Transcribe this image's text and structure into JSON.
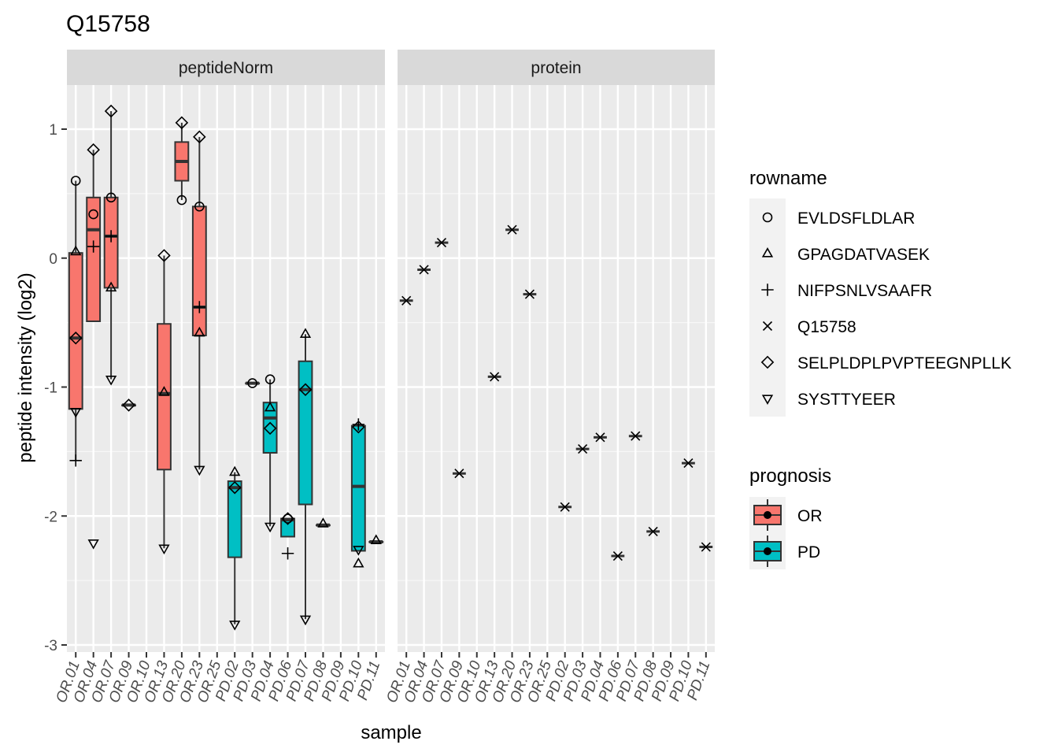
{
  "chart_data": {
    "type": "boxplot",
    "title": "Q15758",
    "xlabel": "sample",
    "ylabel": "peptide intensity (log2)",
    "ylim": [
      -3,
      1.3
    ],
    "yticks": [
      -3,
      -2,
      -1,
      0,
      1
    ],
    "grid": true,
    "samples": [
      "OR.01",
      "OR.04",
      "OR.07",
      "OR.09",
      "OR.10",
      "OR.13",
      "OR.20",
      "OR.23",
      "OR.25",
      "PD.02",
      "PD.03",
      "PD.04",
      "PD.06",
      "PD.07",
      "PD.08",
      "PD.09",
      "PD.10",
      "PD.11"
    ],
    "panels": [
      {
        "name": "peptideNorm",
        "boxes": [
          {
            "sample": "OR.01",
            "group": "OR",
            "q1": -1.17,
            "median": -0.62,
            "q3": 0.04,
            "whisker_low": -1.57,
            "whisker_high": 0.6
          },
          {
            "sample": "OR.04",
            "group": "OR",
            "q1": -0.49,
            "median": 0.22,
            "q3": 0.47,
            "whisker_low": -0.49,
            "whisker_high": 0.84
          },
          {
            "sample": "OR.07",
            "group": "OR",
            "q1": -0.23,
            "median": 0.17,
            "q3": 0.47,
            "whisker_low": -0.94,
            "whisker_high": 1.14
          },
          {
            "sample": "OR.09",
            "group": "OR",
            "q1": -1.14,
            "median": -1.14,
            "q3": -1.14,
            "whisker_low": -1.14,
            "whisker_high": -1.14
          },
          {
            "sample": "OR.13",
            "group": "OR",
            "q1": -1.64,
            "median": -1.05,
            "q3": -0.51,
            "whisker_low": -2.25,
            "whisker_high": 0.02
          },
          {
            "sample": "OR.20",
            "group": "OR",
            "q1": 0.6,
            "median": 0.75,
            "q3": 0.9,
            "whisker_low": 0.45,
            "whisker_high": 1.05
          },
          {
            "sample": "OR.23",
            "group": "OR",
            "q1": -0.6,
            "median": -0.38,
            "q3": 0.4,
            "whisker_low": -1.64,
            "whisker_high": 0.94
          },
          {
            "sample": "PD.02",
            "group": "PD",
            "q1": -2.32,
            "median": -1.78,
            "q3": -1.73,
            "whisker_low": -2.84,
            "whisker_high": -1.66
          },
          {
            "sample": "PD.03",
            "group": "PD",
            "q1": -0.97,
            "median": -0.97,
            "q3": -0.97,
            "whisker_low": -0.97,
            "whisker_high": -0.97
          },
          {
            "sample": "PD.04",
            "group": "PD",
            "q1": -1.51,
            "median": -1.24,
            "q3": -1.12,
            "whisker_low": -2.08,
            "whisker_high": -0.94
          },
          {
            "sample": "PD.06",
            "group": "PD",
            "q1": -2.16,
            "median": -2.03,
            "q3": -2.02,
            "whisker_low": -2.16,
            "whisker_high": -2.02
          },
          {
            "sample": "PD.07",
            "group": "PD",
            "q1": -1.91,
            "median": -1.02,
            "q3": -0.8,
            "whisker_low": -2.8,
            "whisker_high": -0.59
          },
          {
            "sample": "PD.08",
            "group": "PD",
            "q1": -2.07,
            "median": -2.07,
            "q3": -2.07,
            "whisker_low": -2.07,
            "whisker_high": -2.07
          },
          {
            "sample": "PD.10",
            "group": "PD",
            "q1": -2.27,
            "median": -1.77,
            "q3": -1.3,
            "whisker_low": -2.27,
            "whisker_high": -1.3
          },
          {
            "sample": "PD.11",
            "group": "PD",
            "q1": -2.2,
            "median": -2.2,
            "q3": -2.2,
            "whisker_low": -2.2,
            "whisker_high": -2.2
          }
        ],
        "points": [
          {
            "sample": "OR.01",
            "peptide": "EVLDSFLDLAR",
            "y": 0.6
          },
          {
            "sample": "OR.01",
            "peptide": "GPAGDATVASEK",
            "y": 0.05
          },
          {
            "sample": "OR.01",
            "peptide": "NIFPSNLVSAAFR",
            "y": -1.57
          },
          {
            "sample": "OR.01",
            "peptide": "SELPLDPLPVPTEEGNPLLK",
            "y": -0.62
          },
          {
            "sample": "OR.01",
            "peptide": "SYSTTYEER",
            "y": -1.19
          },
          {
            "sample": "OR.04",
            "peptide": "EVLDSFLDLAR",
            "y": 0.34
          },
          {
            "sample": "OR.04",
            "peptide": "NIFPSNLVSAAFR",
            "y": 0.09
          },
          {
            "sample": "OR.04",
            "peptide": "SELPLDPLPVPTEEGNPLLK",
            "y": 0.84
          },
          {
            "sample": "OR.04",
            "peptide": "SYSTTYEER",
            "y": -2.21
          },
          {
            "sample": "OR.07",
            "peptide": "EVLDSFLDLAR",
            "y": 0.47
          },
          {
            "sample": "OR.07",
            "peptide": "GPAGDATVASEK",
            "y": -0.23
          },
          {
            "sample": "OR.07",
            "peptide": "NIFPSNLVSAAFR",
            "y": 0.17
          },
          {
            "sample": "OR.07",
            "peptide": "SELPLDPLPVPTEEGNPLLK",
            "y": 1.14
          },
          {
            "sample": "OR.07",
            "peptide": "SYSTTYEER",
            "y": -0.94
          },
          {
            "sample": "OR.09",
            "peptide": "SELPLDPLPVPTEEGNPLLK",
            "y": -1.14
          },
          {
            "sample": "OR.13",
            "peptide": "GPAGDATVASEK",
            "y": -1.04
          },
          {
            "sample": "OR.13",
            "peptide": "SELPLDPLPVPTEEGNPLLK",
            "y": 0.02
          },
          {
            "sample": "OR.13",
            "peptide": "SYSTTYEER",
            "y": -2.25
          },
          {
            "sample": "OR.20",
            "peptide": "EVLDSFLDLAR",
            "y": 0.45
          },
          {
            "sample": "OR.20",
            "peptide": "SELPLDPLPVPTEEGNPLLK",
            "y": 1.05
          },
          {
            "sample": "OR.23",
            "peptide": "EVLDSFLDLAR",
            "y": 0.4
          },
          {
            "sample": "OR.23",
            "peptide": "GPAGDATVASEK",
            "y": -0.58
          },
          {
            "sample": "OR.23",
            "peptide": "NIFPSNLVSAAFR",
            "y": -0.38
          },
          {
            "sample": "OR.23",
            "peptide": "SELPLDPLPVPTEEGNPLLK",
            "y": 0.94
          },
          {
            "sample": "OR.23",
            "peptide": "SYSTTYEER",
            "y": -1.64
          },
          {
            "sample": "PD.02",
            "peptide": "GPAGDATVASEK",
            "y": -1.66
          },
          {
            "sample": "PD.02",
            "peptide": "SELPLDPLPVPTEEGNPLLK",
            "y": -1.78
          },
          {
            "sample": "PD.02",
            "peptide": "SYSTTYEER",
            "y": -2.84
          },
          {
            "sample": "PD.03",
            "peptide": "EVLDSFLDLAR",
            "y": -0.97
          },
          {
            "sample": "PD.04",
            "peptide": "EVLDSFLDLAR",
            "y": -0.94
          },
          {
            "sample": "PD.04",
            "peptide": "GPAGDATVASEK",
            "y": -1.16
          },
          {
            "sample": "PD.04",
            "peptide": "SELPLDPLPVPTEEGNPLLK",
            "y": -1.32
          },
          {
            "sample": "PD.04",
            "peptide": "SYSTTYEER",
            "y": -2.08
          },
          {
            "sample": "PD.06",
            "peptide": "EVLDSFLDLAR",
            "y": -2.02
          },
          {
            "sample": "PD.06",
            "peptide": "NIFPSNLVSAAFR",
            "y": -2.29
          },
          {
            "sample": "PD.06",
            "peptide": "SELPLDPLPVPTEEGNPLLK",
            "y": -2.02
          },
          {
            "sample": "PD.07",
            "peptide": "GPAGDATVASEK",
            "y": -0.59
          },
          {
            "sample": "PD.07",
            "peptide": "SELPLDPLPVPTEEGNPLLK",
            "y": -1.02
          },
          {
            "sample": "PD.07",
            "peptide": "SYSTTYEER",
            "y": -2.8
          },
          {
            "sample": "PD.08",
            "peptide": "GPAGDATVASEK",
            "y": -2.06
          },
          {
            "sample": "PD.10",
            "peptide": "GPAGDATVASEK",
            "y": -2.37
          },
          {
            "sample": "PD.10",
            "peptide": "NIFPSNLVSAAFR",
            "y": -1.29
          },
          {
            "sample": "PD.10",
            "peptide": "SELPLDPLPVPTEEGNPLLK",
            "y": -1.31
          },
          {
            "sample": "PD.10",
            "peptide": "SYSTTYEER",
            "y": -2.26
          },
          {
            "sample": "PD.11",
            "peptide": "GPAGDATVASEK",
            "y": -2.19
          }
        ]
      },
      {
        "name": "protein",
        "boxes": [],
        "points": [
          {
            "sample": "OR.01",
            "peptide": "Q15758",
            "y": -0.33
          },
          {
            "sample": "OR.04",
            "peptide": "Q15758",
            "y": -0.09
          },
          {
            "sample": "OR.07",
            "peptide": "Q15758",
            "y": 0.12
          },
          {
            "sample": "OR.09",
            "peptide": "Q15758",
            "y": -1.67
          },
          {
            "sample": "OR.13",
            "peptide": "Q15758",
            "y": -0.92
          },
          {
            "sample": "OR.20",
            "peptide": "Q15758",
            "y": 0.22
          },
          {
            "sample": "OR.23",
            "peptide": "Q15758",
            "y": -0.28
          },
          {
            "sample": "PD.02",
            "peptide": "Q15758",
            "y": -1.93
          },
          {
            "sample": "PD.03",
            "peptide": "Q15758",
            "y": -1.48
          },
          {
            "sample": "PD.04",
            "peptide": "Q15758",
            "y": -1.39
          },
          {
            "sample": "PD.06",
            "peptide": "Q15758",
            "y": -2.31
          },
          {
            "sample": "PD.07",
            "peptide": "Q15758",
            "y": -1.38
          },
          {
            "sample": "PD.08",
            "peptide": "Q15758",
            "y": -2.12
          },
          {
            "sample": "PD.10",
            "peptide": "Q15758",
            "y": -1.59
          },
          {
            "sample": "PD.11",
            "peptide": "Q15758",
            "y": -2.24
          }
        ]
      }
    ],
    "legend_shape": {
      "title": "rowname",
      "entries": [
        {
          "label": "EVLDSFLDLAR",
          "shape": "circle"
        },
        {
          "label": "GPAGDATVASEK",
          "shape": "triangle"
        },
        {
          "label": "NIFPSNLVSAAFR",
          "shape": "plus"
        },
        {
          "label": "Q15758",
          "shape": "cross"
        },
        {
          "label": "SELPLDPLPVPTEEGNPLLK",
          "shape": "diamond"
        },
        {
          "label": "SYSTTYEER",
          "shape": "triangle-down"
        }
      ]
    },
    "legend_fill": {
      "title": "prognosis",
      "entries": [
        {
          "label": "OR",
          "color": "#F8766D"
        },
        {
          "label": "PD",
          "color": "#00BFC4"
        }
      ]
    },
    "colors": {
      "panel_bg": "#EBEBEB",
      "strip_bg": "#D9D9D9",
      "grid_major": "#FFFFFF",
      "OR": "#F8766D",
      "PD": "#00BFC4"
    }
  }
}
